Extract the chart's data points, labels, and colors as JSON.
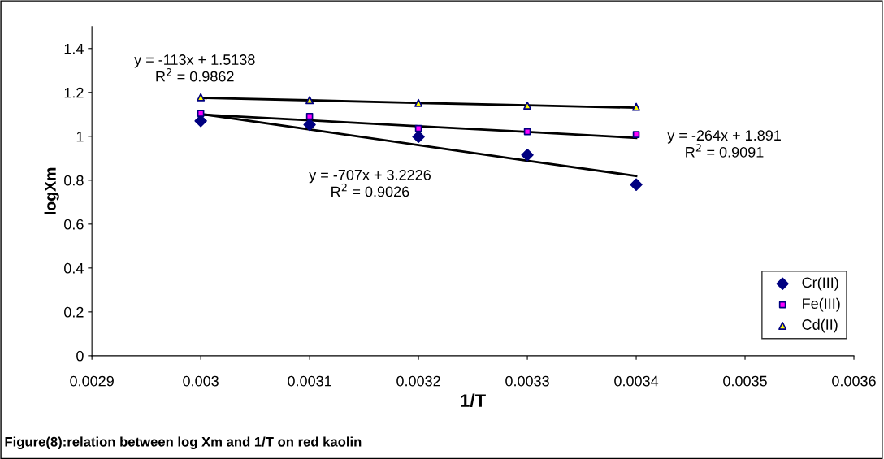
{
  "chart_data": {
    "type": "scatter",
    "xlabel": "1/T",
    "ylabel": "logXm",
    "x": [
      0.003,
      0.0031,
      0.0032,
      0.0033,
      0.0034
    ],
    "series": [
      {
        "name": "Cr(III)",
        "color": "#000080",
        "marker": "diamond",
        "values": [
          1.07,
          1.053,
          0.998,
          0.915,
          0.78
        ]
      },
      {
        "name": "Fe(III)",
        "color": "#ff00ff",
        "marker": "square",
        "values": [
          1.104,
          1.091,
          1.036,
          1.021,
          1.008
        ]
      },
      {
        "name": "Cd(II)",
        "color": "#ffff00",
        "marker": "triangle",
        "values": [
          1.178,
          1.165,
          1.152,
          1.14,
          1.134
        ]
      },
      {
        "type": "line",
        "color": "#000000",
        "values": [
          1.102,
          1.031,
          0.96,
          0.889,
          0.819
        ]
      },
      {
        "type": "line",
        "color": "#000000",
        "values": [
          1.099,
          1.073,
          1.046,
          1.02,
          0.993
        ]
      },
      {
        "type": "line",
        "color": "#000000",
        "values": [
          1.175,
          1.164,
          1.152,
          1.141,
          1.13
        ]
      }
    ],
    "xlim": [
      0.0029,
      0.0036
    ],
    "xticks": [
      0.0029,
      0.003,
      0.0031,
      0.0032,
      0.0033,
      0.0034,
      0.0035,
      0.0036
    ],
    "ylim": [
      0,
      1.5
    ],
    "yticks": [
      0,
      0.2,
      0.4,
      0.6,
      0.8,
      1,
      1.2,
      1.4
    ],
    "grid": false,
    "legend": "bottom right",
    "annotations": [
      "y = -113x + 1.5138\nR$^{2}$ = 0.9862",
      "y = -264x + 1.891\nR$^{2}$ = 0.9091",
      "y = -707x + 3.2226\nR$^{2}$ = 0.9026",
      "Figure(8):relation between log Xm and 1/T on red kaolin"
    ]
  }
}
